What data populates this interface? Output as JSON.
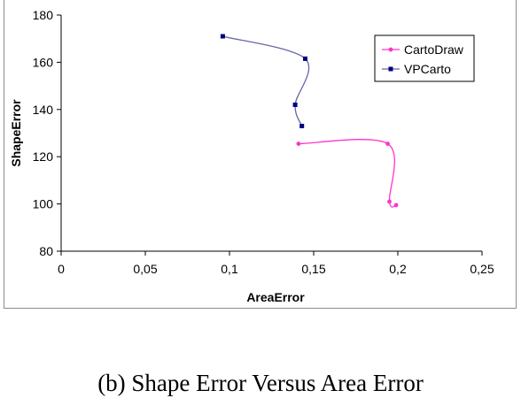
{
  "caption": "(b) Shape Error Versus Area Error",
  "chart_data": {
    "type": "line",
    "xlabel": "AreaError",
    "ylabel": "ShapeError",
    "xlim": [
      0,
      0.25
    ],
    "ylim": [
      80,
      180
    ],
    "xticks": [
      0,
      0.05,
      0.1,
      0.15,
      0.2,
      0.25
    ],
    "xtick_labels": [
      "0",
      "0,05",
      "0,1",
      "0,15",
      "0,2",
      "0,25"
    ],
    "yticks": [
      80,
      100,
      120,
      140,
      160,
      180
    ],
    "ytick_labels": [
      "80",
      "100",
      "120",
      "140",
      "160",
      "180"
    ],
    "grid": false,
    "legend_position": "top-right",
    "series": [
      {
        "name": "CartoDraw",
        "color": "#ff33cc",
        "marker": "circle",
        "points": [
          [
            0.141,
            125.5
          ],
          [
            0.194,
            125.5
          ],
          [
            0.195,
            101.0
          ],
          [
            0.199,
            99.5
          ]
        ]
      },
      {
        "name": "VPCarto",
        "color": "#000080",
        "line_color": "#6666aa",
        "marker": "square",
        "points": [
          [
            0.096,
            171.0
          ],
          [
            0.145,
            161.5
          ],
          [
            0.139,
            142.0
          ],
          [
            0.143,
            133.0
          ]
        ]
      }
    ]
  }
}
